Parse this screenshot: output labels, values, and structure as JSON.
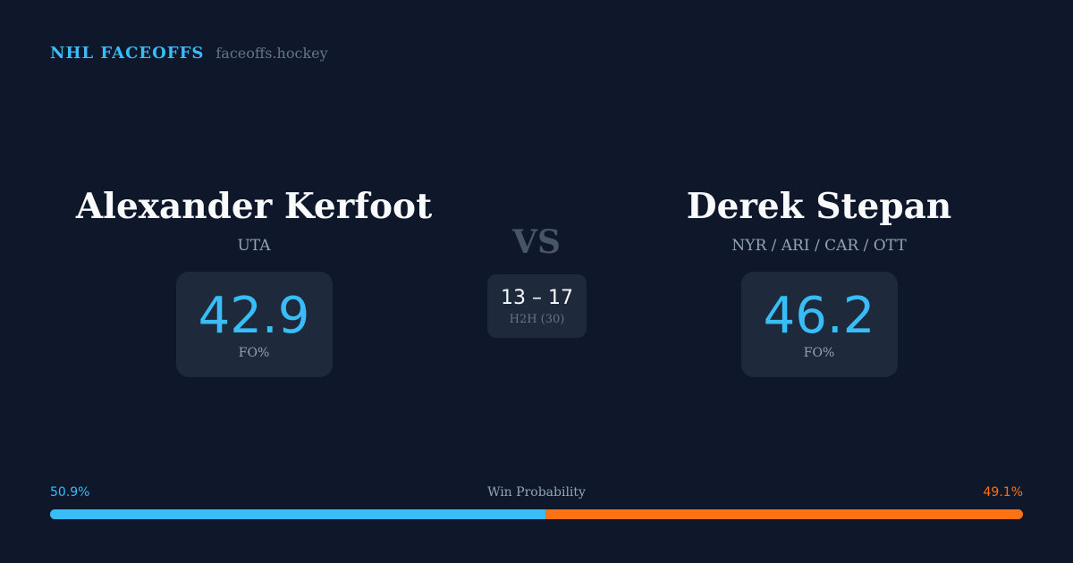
{
  "brand": {
    "title": "NHL FACEOFFS",
    "site": "faceoffs.hockey"
  },
  "player_left": {
    "name": "Alexander Kerfoot",
    "team": "UTA",
    "fo_pct": "42.9",
    "fo_label": "FO%"
  },
  "player_right": {
    "name": "Derek Stepan",
    "team": "NYR / ARI / CAR / OTT",
    "fo_pct": "46.2",
    "fo_label": "FO%"
  },
  "vs": "VS",
  "h2h": {
    "score": "13 – 17",
    "label": "H2H (30)"
  },
  "win_probability": {
    "title": "Win Probability",
    "left_label": "50.9%",
    "right_label": "49.1%",
    "left_value": 50.9,
    "right_value": 49.1
  },
  "colors": {
    "accent": "#38bdf8",
    "opponent": "#f97316",
    "background": "#0f172a",
    "card": "#1e293b"
  }
}
